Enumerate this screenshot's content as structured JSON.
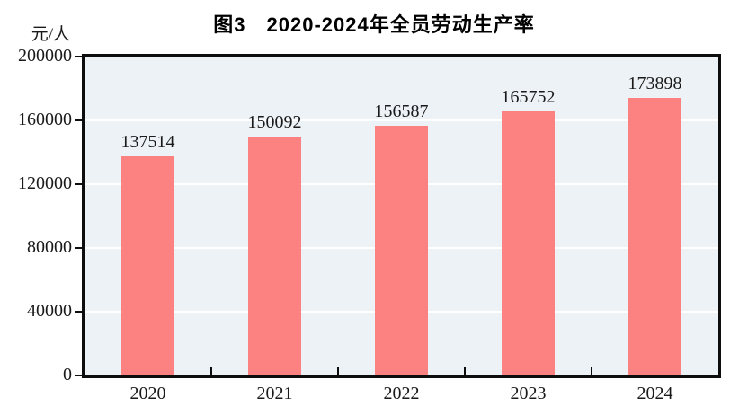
{
  "chart_data": {
    "type": "bar",
    "title": "图3　2020-2024年全员劳动生产率",
    "ylabel": "元/人",
    "xlabel": "",
    "categories": [
      "2020",
      "2021",
      "2022",
      "2023",
      "2024"
    ],
    "values": [
      137514,
      150092,
      156587,
      165752,
      173898
    ],
    "ylim": [
      0,
      200000
    ],
    "yticks": [
      0,
      40000,
      80000,
      120000,
      160000,
      200000
    ],
    "grid": true,
    "legend_position": "none",
    "data_labels_shown": true,
    "bar_color": "#FC8181",
    "plot_background": "#ECF2F6",
    "gridline_color": "#FFFFFF",
    "axis_color": "#0D0D0D",
    "text_color": "#1A1A1A"
  }
}
